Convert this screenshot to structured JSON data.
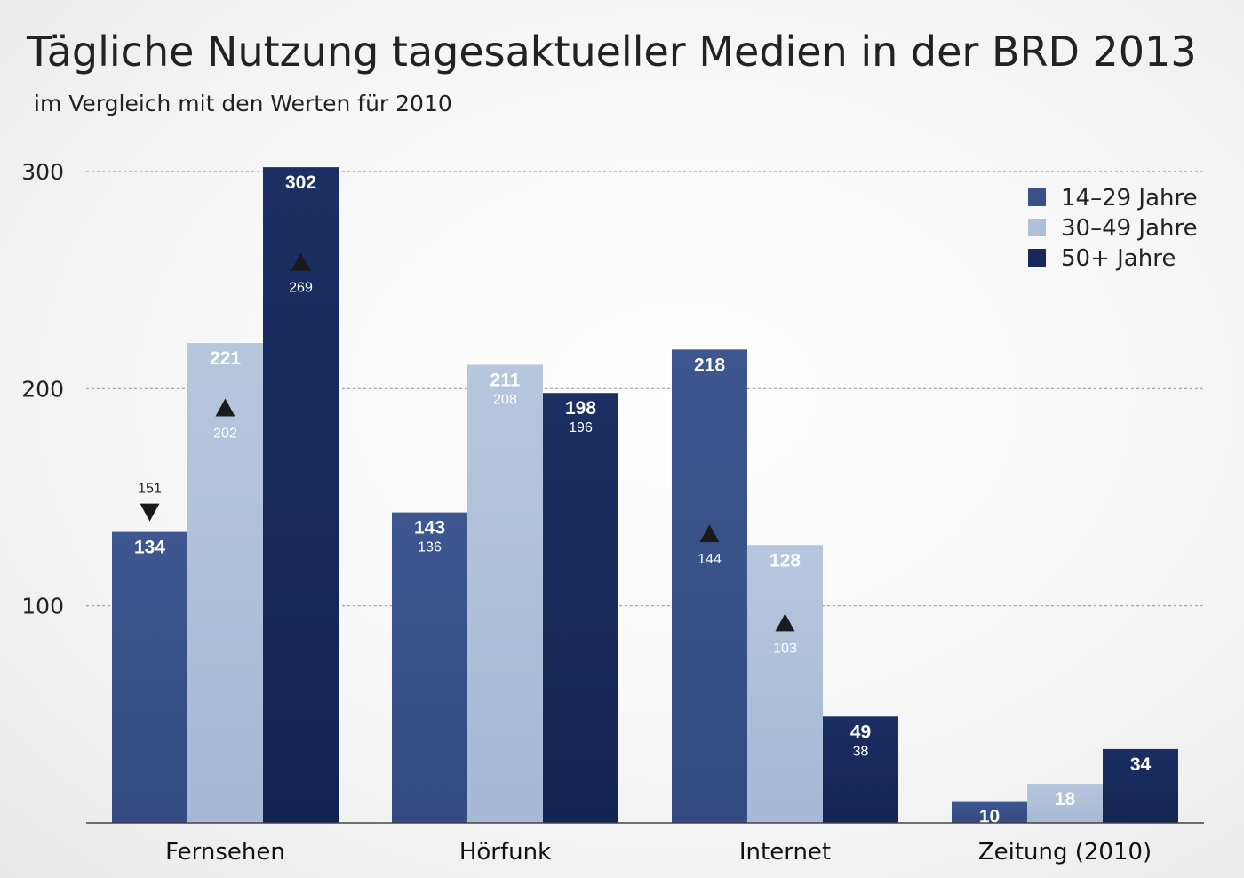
{
  "chart_data": {
    "type": "bar",
    "title": "Tägliche Nutzung tagesaktueller Medien in der BRD 2013",
    "subtitle": "im Vergleich mit den Werten für 2010",
    "categories": [
      "Fernsehen",
      "Hörfunk",
      "Internet",
      "Zeitung (2010)"
    ],
    "ylim": [
      0,
      300
    ],
    "yticks": [
      100,
      200,
      300
    ],
    "grid": true,
    "legend_position": "top-right",
    "series": [
      {
        "name": "14–29 Jahre",
        "color": "#3a5088",
        "values": [
          134,
          143,
          218,
          10
        ],
        "values_2010": [
          151,
          136,
          144,
          null
        ],
        "trend": [
          "down",
          "none",
          "up",
          "none"
        ]
      },
      {
        "name": "30–49 Jahre",
        "color": "#aebfd8",
        "values": [
          221,
          211,
          128,
          18
        ],
        "values_2010": [
          202,
          208,
          103,
          null
        ],
        "trend": [
          "up",
          "none",
          "up",
          "none"
        ]
      },
      {
        "name": "50+ Jahre",
        "color": "#172859",
        "values": [
          302,
          198,
          49,
          34
        ],
        "values_2010": [
          269,
          196,
          38,
          null
        ],
        "trend": [
          "up",
          "none",
          "none",
          "none"
        ]
      }
    ]
  }
}
